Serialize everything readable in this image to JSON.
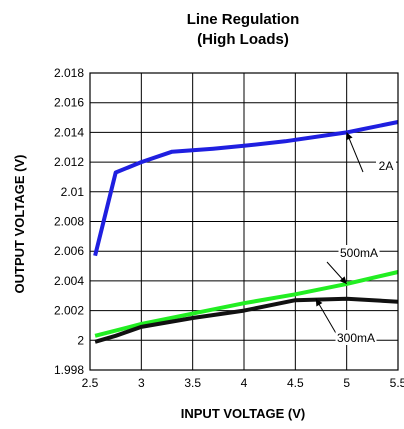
{
  "chart_data": {
    "type": "line",
    "title": "Line Regulation",
    "subtitle": "(High Loads)",
    "xlabel": "INPUT VOLTAGE (V)",
    "ylabel": "OUTPUT VOLTAGE (V)",
    "xlim": [
      2.5,
      5.5
    ],
    "ylim": [
      1.998,
      2.018
    ],
    "x_ticks": [
      "2.5",
      "3",
      "3.5",
      "4",
      "4.5",
      "5",
      "5.5"
    ],
    "y_ticks": [
      "1.998",
      "2",
      "2.002",
      "2.004",
      "2.006",
      "2.008",
      "2.01",
      "2.012",
      "2.014",
      "2.016",
      "2.018"
    ],
    "grid": true,
    "series": [
      {
        "name": "2A",
        "color": "#1f1fe0",
        "points": [
          [
            2.55,
            2.0057
          ],
          [
            2.75,
            2.0113
          ],
          [
            3.0,
            2.012
          ],
          [
            3.3,
            2.0127
          ],
          [
            3.7,
            2.0129
          ],
          [
            4.0,
            2.0131
          ],
          [
            4.4,
            2.0134
          ],
          [
            5.0,
            2.014
          ],
          [
            5.5,
            2.0147
          ]
        ]
      },
      {
        "name": "500mA",
        "color": "#22ee22",
        "points": [
          [
            2.55,
            2.0003
          ],
          [
            3.0,
            2.0011
          ],
          [
            3.5,
            2.0018
          ],
          [
            4.0,
            2.0025
          ],
          [
            4.5,
            2.0031
          ],
          [
            5.0,
            2.0038
          ],
          [
            5.5,
            2.0046
          ]
        ]
      },
      {
        "name": "300mA",
        "color": "#111111",
        "points": [
          [
            2.55,
            1.9999
          ],
          [
            2.75,
            2.0003
          ],
          [
            3.0,
            2.0009
          ],
          [
            3.5,
            2.0015
          ],
          [
            4.0,
            2.002
          ],
          [
            4.5,
            2.0027
          ],
          [
            5.0,
            2.0028
          ],
          [
            5.5,
            2.0026
          ]
        ]
      }
    ],
    "annotations": [
      {
        "text": "2A",
        "series": "2A",
        "x": 5.0,
        "y": 2.014
      },
      {
        "text": "500mA",
        "series": "500mA",
        "x": 5.0,
        "y": 2.0038
      },
      {
        "text": "300mA",
        "series": "300mA",
        "x": 4.7,
        "y": 2.0028
      }
    ]
  }
}
